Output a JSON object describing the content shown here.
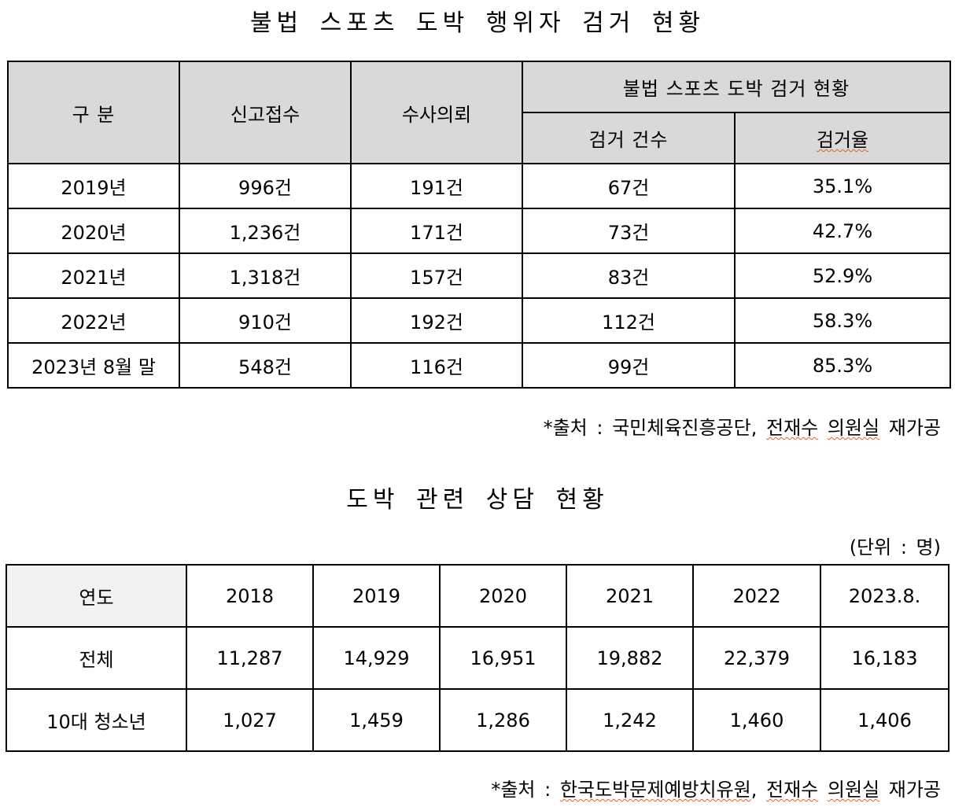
{
  "title1": "불법 스포츠 도박 행위자 검거 현황",
  "table1": {
    "header": {
      "category": "구 분",
      "reports": "신고접수",
      "investigation": "수사의뢰",
      "arrest_group": "불법 스포츠 도박 검거 현황",
      "arrest_count": "검거 건수",
      "arrest_rate": "검거율"
    },
    "rows": [
      {
        "year": "2019년",
        "reports": "996건",
        "investigation": "191건",
        "arrests": "67건",
        "rate": "35.1%"
      },
      {
        "year": "2020년",
        "reports": "1,236건",
        "investigation": "171건",
        "arrests": "73건",
        "rate": "42.7%"
      },
      {
        "year": "2021년",
        "reports": "1,318건",
        "investigation": "157건",
        "arrests": "83건",
        "rate": "52.9%"
      },
      {
        "year": "2022년",
        "reports": "910건",
        "investigation": "192건",
        "arrests": "112건",
        "rate": "58.3%"
      },
      {
        "year": "2023년 8월 말",
        "reports": "548건",
        "investigation": "116건",
        "arrests": "99건",
        "rate": "85.3%"
      }
    ],
    "source_prefix": "*출처 : 국민체육진흥공단, ",
    "source_name": "전재수",
    "source_office": "의원실",
    "source_suffix": " 재가공"
  },
  "title2": "도박 관련 상담 현황",
  "table2": {
    "unit": "(단위 : 명)",
    "header_label": "연도",
    "years": [
      "2018",
      "2019",
      "2020",
      "2021",
      "2022",
      "2023.8."
    ],
    "rows": [
      {
        "label": "전체",
        "values": [
          "11,287",
          "14,929",
          "16,951",
          "19,882",
          "22,379",
          "16,183"
        ]
      },
      {
        "label": "10대 청소년",
        "values": [
          "1,027",
          "1,459",
          "1,286",
          "1,242",
          "1,460",
          "1,406"
        ]
      }
    ],
    "source_prefix": "*출처 : ",
    "source_org": "한국도박문제예방치유원",
    "source_comma": ", ",
    "source_name": "전재수",
    "source_office": "의원실",
    "source_suffix": " 재가공"
  }
}
